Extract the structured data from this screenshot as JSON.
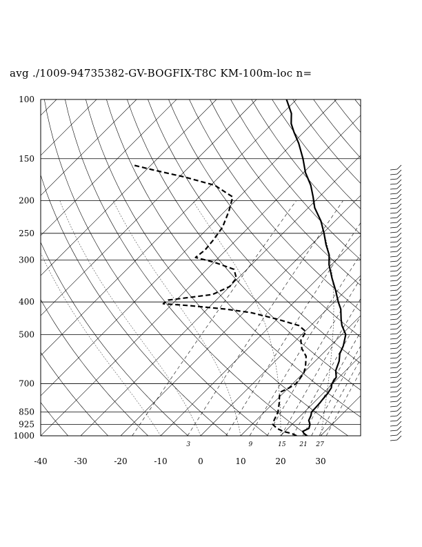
{
  "chart_data": {
    "type": "line",
    "title": "avg ./1009-94735382-GV-BOGFIX-T8C KM-100m-loc n=",
    "diagram": "skew-T log-p",
    "y_axis": {
      "scale": "log",
      "units": "hPa",
      "ticks": [
        100,
        150,
        200,
        250,
        300,
        400,
        500,
        700,
        850,
        925,
        1000
      ],
      "range": [
        1000,
        100
      ]
    },
    "x_axis": {
      "units": "C",
      "ticks": [
        -40,
        -30,
        -20,
        -10,
        0,
        10,
        20,
        30
      ],
      "range": [
        -40,
        40
      ]
    },
    "mixing_ratio_labels": [
      "3",
      "9",
      "15",
      "21",
      "27"
    ],
    "series": [
      {
        "style": "solid",
        "points": [
          [
            1000,
            26.5
          ],
          [
            985,
            25.3
          ],
          [
            970,
            24.4
          ],
          [
            950,
            25.2
          ],
          [
            925,
            24.5
          ],
          [
            900,
            23.2
          ],
          [
            870,
            22.5
          ],
          [
            850,
            21.8
          ],
          [
            820,
            21.7
          ],
          [
            800,
            21.6
          ],
          [
            780,
            21.4
          ],
          [
            750,
            21.2
          ],
          [
            720,
            20.7
          ],
          [
            700,
            19.8
          ],
          [
            670,
            19.3
          ],
          [
            640,
            17.5
          ],
          [
            600,
            16.0
          ],
          [
            570,
            14.3
          ],
          [
            540,
            13.2
          ],
          [
            500,
            11.0
          ],
          [
            470,
            7.8
          ],
          [
            450,
            6.0
          ],
          [
            420,
            3.4
          ],
          [
            400,
            1.0
          ],
          [
            370,
            -2.5
          ],
          [
            340,
            -6.5
          ],
          [
            310,
            -10.6
          ],
          [
            290,
            -13.0
          ],
          [
            270,
            -16.4
          ],
          [
            250,
            -19.7
          ],
          [
            230,
            -23.5
          ],
          [
            210,
            -28.4
          ],
          [
            195,
            -31.5
          ],
          [
            180,
            -35.0
          ],
          [
            165,
            -39.5
          ],
          [
            150,
            -43.6
          ],
          [
            135,
            -48.5
          ],
          [
            125,
            -52.5
          ],
          [
            118,
            -55.3
          ],
          [
            110,
            -57.8
          ],
          [
            100,
            -62.5
          ]
        ]
      },
      {
        "style": "dashed",
        "points": [
          [
            1000,
            24.0
          ],
          [
            985,
            22.3
          ],
          [
            970,
            19.5
          ],
          [
            950,
            17.2
          ],
          [
            925,
            15.2
          ],
          [
            900,
            14.5
          ],
          [
            850,
            13.4
          ],
          [
            800,
            11.5
          ],
          [
            760,
            9.7
          ],
          [
            740,
            9.1
          ],
          [
            720,
            10.2
          ],
          [
            700,
            10.8
          ],
          [
            680,
            10.6
          ],
          [
            650,
            10.1
          ],
          [
            620,
            8.8
          ],
          [
            580,
            6.5
          ],
          [
            550,
            3.5
          ],
          [
            520,
            1.2
          ],
          [
            490,
            0.3
          ],
          [
            470,
            -3.0
          ],
          [
            450,
            -10.0
          ],
          [
            430,
            -18.3
          ],
          [
            420,
            -25.5
          ],
          [
            410,
            -35.5
          ],
          [
            405,
            -42.3
          ],
          [
            395,
            -42.0
          ],
          [
            380,
            -32.3
          ],
          [
            360,
            -30.0
          ],
          [
            340,
            -30.4
          ],
          [
            320,
            -33.2
          ],
          [
            305,
            -39.8
          ],
          [
            295,
            -45.8
          ],
          [
            280,
            -45.3
          ],
          [
            262,
            -45.7
          ],
          [
            240,
            -46.6
          ],
          [
            215,
            -49.0
          ],
          [
            195,
            -51.6
          ],
          [
            180,
            -59.0
          ],
          [
            170,
            -68.7
          ],
          [
            162,
            -78.3
          ],
          [
            157,
            -84.1
          ]
        ]
      }
    ]
  }
}
